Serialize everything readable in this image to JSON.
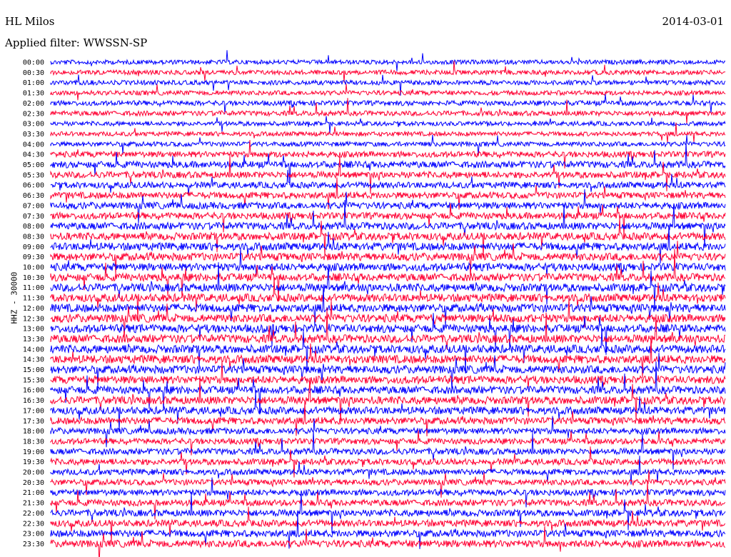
{
  "header": {
    "station": "HL Milos",
    "date": "2014-03-01",
    "filter": "Applied filter: WWSSN-SP"
  },
  "chart_data": {
    "type": "line",
    "title": "HL Milos",
    "subtitle": "Applied filter: WWSSN-SP",
    "ylabel": "HHZ - 30000",
    "xlabel": "",
    "date": "2014-03-01",
    "row_labels": [
      "00:00",
      "00:30",
      "01:00",
      "01:30",
      "02:00",
      "02:30",
      "03:00",
      "03:30",
      "04:00",
      "04:30",
      "05:00",
      "05:30",
      "06:00",
      "06:30",
      "07:00",
      "07:30",
      "08:00",
      "08:30",
      "09:00",
      "09:30",
      "10:00",
      "10:30",
      "11:00",
      "11:30",
      "12:00",
      "12:30",
      "13:00",
      "13:30",
      "14:00",
      "14:30",
      "15:00",
      "15:30",
      "16:00",
      "16:30",
      "17:00",
      "17:30",
      "18:00",
      "18:30",
      "19:00",
      "19:30",
      "20:00",
      "20:30",
      "21:00",
      "21:30",
      "22:00",
      "22:30",
      "23:00",
      "23:30"
    ],
    "series_colors": [
      "#0000ff",
      "#ff0033"
    ],
    "activity": [
      0.25,
      0.3,
      0.3,
      0.3,
      0.35,
      0.35,
      0.25,
      0.25,
      0.3,
      0.55,
      0.7,
      0.65,
      0.6,
      0.65,
      0.7,
      0.7,
      0.8,
      0.85,
      0.9,
      0.9,
      0.9,
      0.9,
      0.95,
      0.95,
      1.0,
      1.0,
      1.0,
      1.0,
      1.0,
      1.0,
      0.95,
      0.9,
      0.9,
      0.9,
      0.85,
      0.75,
      0.6,
      0.55,
      0.6,
      0.6,
      0.55,
      0.55,
      0.6,
      0.65,
      0.7,
      0.7,
      0.75,
      0.8
    ],
    "grid": false
  }
}
